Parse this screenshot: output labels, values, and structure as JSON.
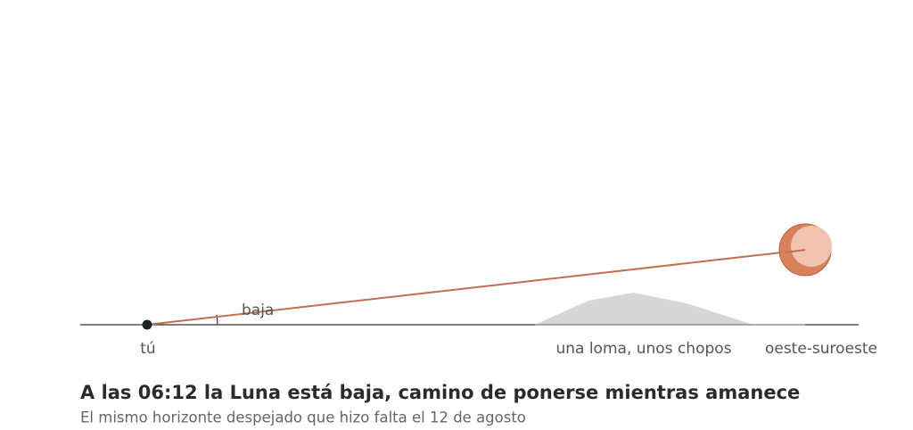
{
  "labels": {
    "observer": "tú",
    "angle": "baja",
    "obstacle": "una loma, unos chopos",
    "direction": "oeste-suroeste"
  },
  "caption": {
    "title": "A las 06:12 la Luna está baja, camino de ponerse mientras amanece",
    "subtitle": "El mismo horizonte despejado que hizo falta el 12 de agosto"
  }
}
